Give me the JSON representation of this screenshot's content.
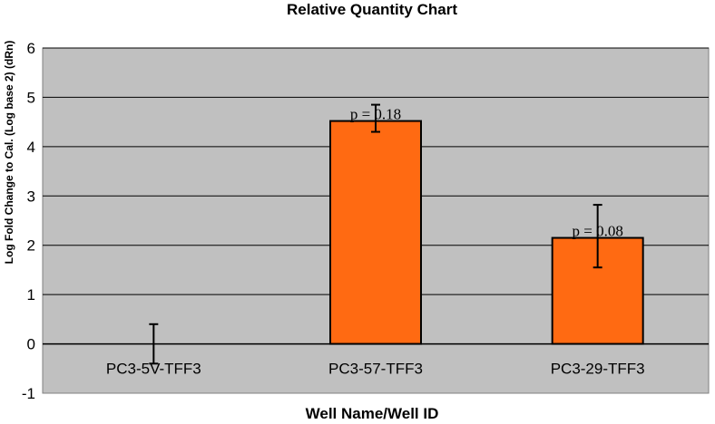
{
  "chart_data": {
    "type": "bar",
    "title": "Relative Quantity Chart",
    "xlabel": "Well Name/Well ID",
    "ylabel": "Log Fold Change to Cal. (Log base 2) (dRn)",
    "categories": [
      "PC3-5V-TFF3",
      "PC3-57-TFF3",
      "PC3-29-TFF3"
    ],
    "values": [
      0,
      4.52,
      2.15
    ],
    "error_low": [
      0.4,
      0.22,
      0.6
    ],
    "error_high": [
      0.4,
      0.33,
      0.67
    ],
    "annotations": [
      "",
      "p = 0.18",
      "p = 0.08"
    ],
    "ylim": [
      -1,
      6
    ],
    "yticks": [
      "-1",
      "0",
      "1",
      "2",
      "3",
      "4",
      "5",
      "6"
    ],
    "grid": true,
    "legend": "none",
    "colors": {
      "bar_fill": "#ff6a12",
      "bar_stroke": "#000000",
      "plot_bg": "#c0c0c0",
      "gridline": "#000000"
    }
  }
}
